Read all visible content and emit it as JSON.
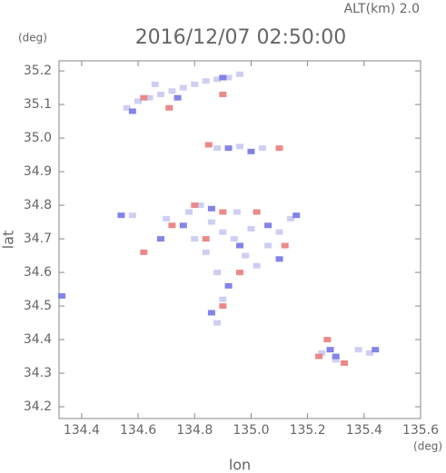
{
  "chart_data": {
    "type": "scatter",
    "title": "2016/12/07 02:50:00",
    "subtitle": "ALT(km) 2.0",
    "x_label": "lon",
    "y_label": "lat",
    "x_unit": "(deg)",
    "y_unit": "(deg)",
    "xlim": [
      134.32,
      135.6
    ],
    "ylim": [
      34.165,
      35.23
    ],
    "xticks": [
      134.4,
      134.6,
      134.8,
      {
        "value": 135.0,
        "label": "135.0"
      },
      135.2,
      135.4,
      135.6
    ],
    "yticks": [
      34.2,
      34.3,
      34.4,
      34.5,
      34.6,
      34.7,
      34.8,
      34.9,
      {
        "value": 35.0,
        "label": "35.0"
      },
      35.1,
      35.2
    ],
    "series": [
      {
        "color": "#c9c9f2",
        "x": [
          134.56,
          134.6,
          134.64,
          134.68,
          134.72,
          134.76,
          134.8,
          134.84,
          134.88,
          134.92,
          134.96,
          134.66,
          134.88,
          134.96,
          135.04,
          134.78,
          134.82,
          134.86,
          134.9,
          134.94,
          134.98,
          135.02,
          135.06,
          135.1,
          135.14,
          134.88,
          134.9,
          134.88,
          134.8,
          134.84,
          134.95,
          135.0,
          134.58,
          134.7,
          135.25,
          135.3,
          135.38,
          135.42
        ],
        "values": [
          35.09,
          35.11,
          35.12,
          35.13,
          35.14,
          35.15,
          35.16,
          35.17,
          35.175,
          35.18,
          35.19,
          35.16,
          34.97,
          34.975,
          34.97,
          34.78,
          34.8,
          34.75,
          34.72,
          34.7,
          34.65,
          34.62,
          34.68,
          34.72,
          34.76,
          34.6,
          34.52,
          34.45,
          34.7,
          34.66,
          34.78,
          34.73,
          34.77,
          34.76,
          34.36,
          34.34,
          34.37,
          34.36
        ]
      },
      {
        "color": "#7676e6",
        "x": [
          134.58,
          134.74,
          134.9,
          134.92,
          135.0,
          134.76,
          134.86,
          134.96,
          135.06,
          135.1,
          134.92,
          134.86,
          135.16,
          134.68,
          135.28,
          135.3,
          135.44,
          134.33,
          134.54
        ],
        "values": [
          35.08,
          35.12,
          35.18,
          34.97,
          34.96,
          34.74,
          34.79,
          34.68,
          34.74,
          34.64,
          34.56,
          34.48,
          34.77,
          34.7,
          34.37,
          34.35,
          34.37,
          34.53,
          34.77
        ]
      },
      {
        "color": "#ea7c7c",
        "x": [
          134.62,
          134.71,
          134.9,
          134.85,
          135.1,
          134.8,
          134.9,
          134.84,
          135.02,
          135.12,
          134.96,
          134.9,
          134.72,
          135.24,
          135.27,
          135.33,
          134.62
        ],
        "values": [
          35.12,
          35.09,
          35.13,
          34.98,
          34.97,
          34.8,
          34.78,
          34.7,
          34.78,
          34.68,
          34.6,
          34.5,
          34.74,
          34.35,
          34.4,
          34.33,
          34.66
        ]
      }
    ]
  }
}
